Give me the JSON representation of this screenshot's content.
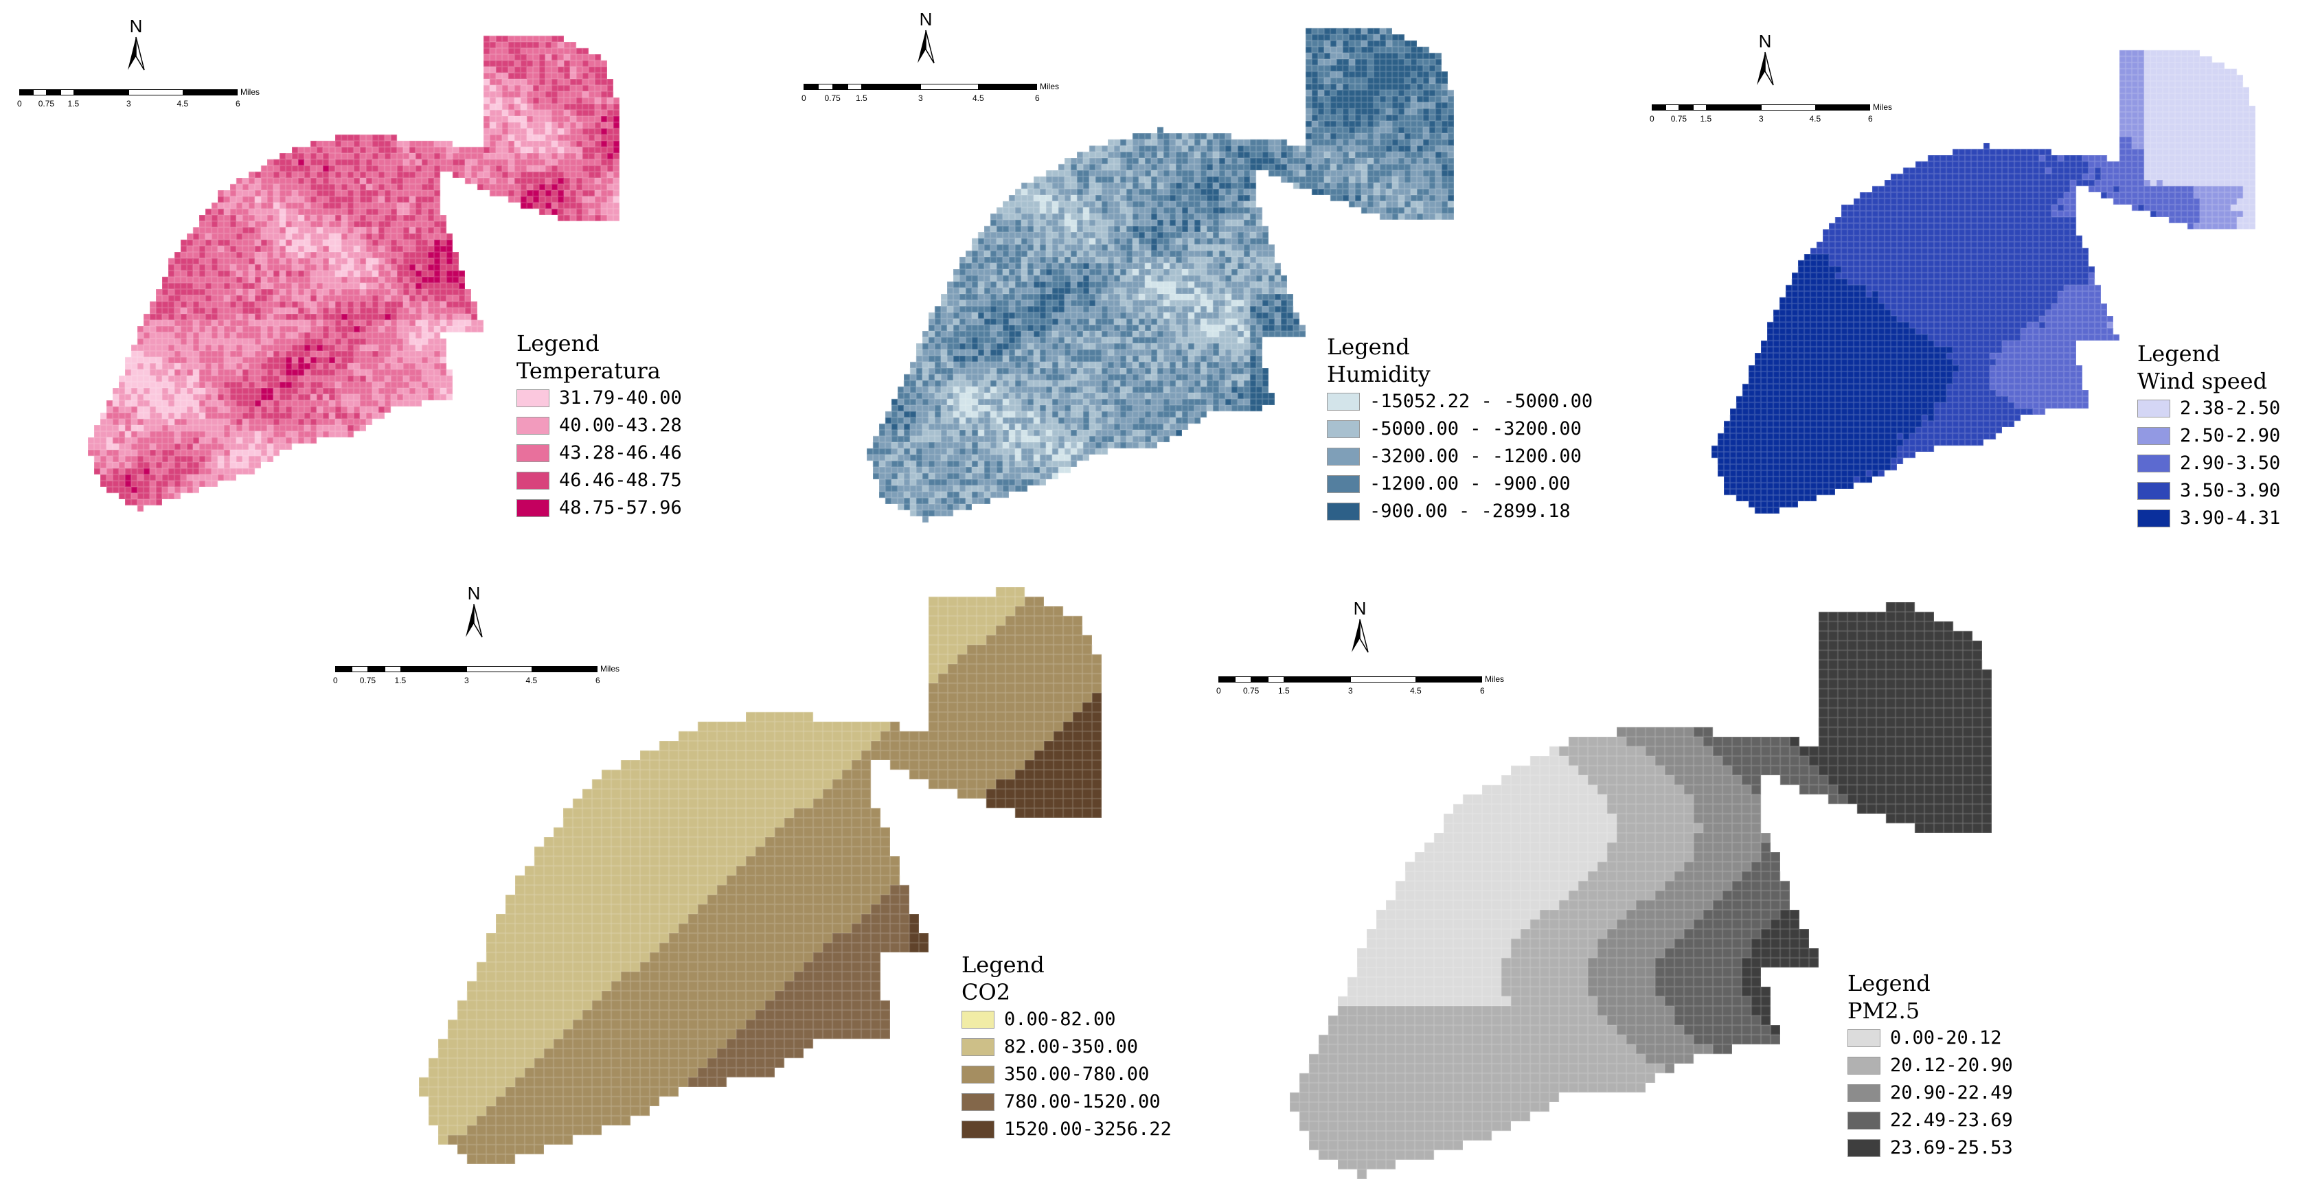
{
  "panels": [
    {
      "id": "temperature",
      "legend_heading": "Legend",
      "field": "Temperatura",
      "classes": [
        {
          "label": "31.79-40.00",
          "color": "#fbc8de"
        },
        {
          "label": "40.00-43.28",
          "color": "#f29bbd"
        },
        {
          "label": "43.28-46.46",
          "color": "#e8709c"
        },
        {
          "label": "46.46-48.75",
          "color": "#d8437c"
        },
        {
          "label": "48.75-57.96",
          "color": "#c4005f"
        }
      ]
    },
    {
      "id": "humidity",
      "legend_heading": "Legend",
      "field": "Humidity",
      "classes": [
        {
          "label": "-15052.22 - -5000.00",
          "color": "#d3e4ea"
        },
        {
          "label": "-5000.00 - -3200.00",
          "color": "#a8c0cf"
        },
        {
          "label": "-3200.00 - -1200.00",
          "color": "#7f9fb8"
        },
        {
          "label": "-1200.00 - -900.00",
          "color": "#547f9f"
        },
        {
          "label": "-900.00 - -2899.18",
          "color": "#2d6088"
        }
      ]
    },
    {
      "id": "wind",
      "legend_heading": "Legend",
      "field": "Wind speed",
      "classes": [
        {
          "label": "2.38-2.50",
          "color": "#d4d6f5"
        },
        {
          "label": "2.50-2.90",
          "color": "#9299e3"
        },
        {
          "label": "2.90-3.50",
          "color": "#5c6ad0"
        },
        {
          "label": "3.50-3.90",
          "color": "#2e47b8"
        },
        {
          "label": "3.90-4.31",
          "color": "#0a2f9c"
        }
      ]
    },
    {
      "id": "co2",
      "legend_heading": "Legend",
      "field": "CO2",
      "classes": [
        {
          "label": "0.00-82.00",
          "color": "#f1eca6"
        },
        {
          "label": "82.00-350.00",
          "color": "#cdbf88"
        },
        {
          "label": "350.00-780.00",
          "color": "#a58e61"
        },
        {
          "label": "780.00-1520.00",
          "color": "#83674a"
        },
        {
          "label": "1520.00-3256.22",
          "color": "#60432b"
        }
      ]
    },
    {
      "id": "pm25",
      "legend_heading": "Legend",
      "field": "PM2.5",
      "classes": [
        {
          "label": "0.00-20.12",
          "color": "#dcdcdc"
        },
        {
          "label": "20.12-20.90",
          "color": "#b1b1b1"
        },
        {
          "label": "20.90-22.49",
          "color": "#8c8c8c"
        },
        {
          "label": "22.49-23.69",
          "color": "#636363"
        },
        {
          "label": "23.69-25.53",
          "color": "#3e3e3e"
        }
      ]
    }
  ],
  "north_label": "N",
  "scale_bar": {
    "ticks": [
      "0",
      "0.75",
      "1.5",
      "3",
      "4.5",
      "6"
    ],
    "unit": "Miles"
  }
}
